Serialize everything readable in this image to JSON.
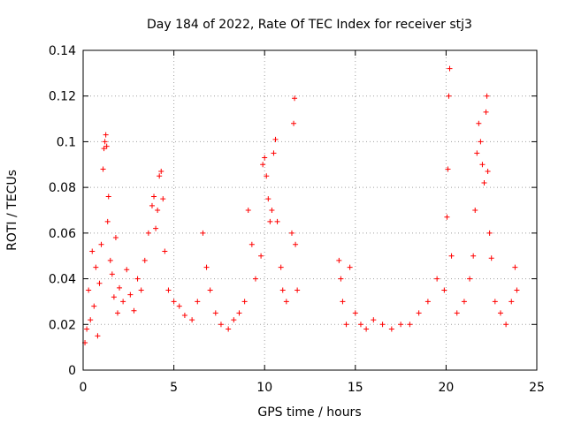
{
  "chart_data": {
    "type": "scatter",
    "title": "Day 184 of 2022, Rate Of TEC Index for receiver stj3",
    "xlabel": "GPS time / hours",
    "ylabel": "ROTI / TECUs",
    "xlim": [
      0,
      25
    ],
    "ylim": [
      0,
      0.14
    ],
    "x_ticks": [
      0,
      5,
      10,
      15,
      20,
      25
    ],
    "x_tick_labels": [
      "0",
      "5",
      "10",
      "15",
      "20",
      "25"
    ],
    "y_ticks": [
      0,
      0.02,
      0.04,
      0.06,
      0.08,
      0.1,
      0.12,
      0.14
    ],
    "y_tick_labels": [
      "0",
      "0.02",
      "0.04",
      "0.06",
      "0.08",
      "0.1",
      "0.12",
      "0.14"
    ],
    "grid": true,
    "grid_style": "dotted",
    "legend": "none",
    "marker": "plus",
    "color": "#ff0000",
    "data_gap_hours": [
      12.0,
      14.1
    ],
    "series": [
      {
        "values": [
          [
            0.1,
            0.012
          ],
          [
            0.2,
            0.018
          ],
          [
            0.3,
            0.035
          ],
          [
            0.4,
            0.022
          ],
          [
            0.5,
            0.052
          ],
          [
            0.6,
            0.028
          ],
          [
            0.7,
            0.045
          ],
          [
            0.8,
            0.015
          ],
          [
            0.9,
            0.038
          ],
          [
            1.0,
            0.055
          ],
          [
            1.1,
            0.088
          ],
          [
            1.15,
            0.097
          ],
          [
            1.2,
            0.1
          ],
          [
            1.25,
            0.103
          ],
          [
            1.3,
            0.098
          ],
          [
            1.35,
            0.065
          ],
          [
            1.4,
            0.076
          ],
          [
            1.5,
            0.048
          ],
          [
            1.6,
            0.042
          ],
          [
            1.7,
            0.032
          ],
          [
            1.8,
            0.058
          ],
          [
            1.9,
            0.025
          ],
          [
            2.0,
            0.036
          ],
          [
            2.2,
            0.03
          ],
          [
            2.4,
            0.044
          ],
          [
            2.6,
            0.033
          ],
          [
            2.8,
            0.026
          ],
          [
            3.0,
            0.04
          ],
          [
            3.2,
            0.035
          ],
          [
            3.4,
            0.048
          ],
          [
            3.6,
            0.06
          ],
          [
            3.8,
            0.072
          ],
          [
            3.9,
            0.076
          ],
          [
            4.0,
            0.062
          ],
          [
            4.1,
            0.07
          ],
          [
            4.2,
            0.085
          ],
          [
            4.3,
            0.087
          ],
          [
            4.4,
            0.075
          ],
          [
            4.5,
            0.052
          ],
          [
            4.7,
            0.035
          ],
          [
            5.0,
            0.03
          ],
          [
            5.3,
            0.028
          ],
          [
            5.6,
            0.024
          ],
          [
            6.0,
            0.022
          ],
          [
            6.3,
            0.03
          ],
          [
            6.6,
            0.06
          ],
          [
            6.8,
            0.045
          ],
          [
            7.0,
            0.035
          ],
          [
            7.3,
            0.025
          ],
          [
            7.6,
            0.02
          ],
          [
            8.0,
            0.018
          ],
          [
            8.3,
            0.022
          ],
          [
            8.6,
            0.025
          ],
          [
            8.9,
            0.03
          ],
          [
            9.1,
            0.07
          ],
          [
            9.3,
            0.055
          ],
          [
            9.5,
            0.04
          ],
          [
            9.8,
            0.05
          ],
          [
            9.9,
            0.09
          ],
          [
            10.0,
            0.093
          ],
          [
            10.1,
            0.085
          ],
          [
            10.2,
            0.075
          ],
          [
            10.3,
            0.065
          ],
          [
            10.4,
            0.07
          ],
          [
            10.5,
            0.095
          ],
          [
            10.6,
            0.101
          ],
          [
            10.7,
            0.065
          ],
          [
            10.9,
            0.045
          ],
          [
            11.0,
            0.035
          ],
          [
            11.2,
            0.03
          ],
          [
            11.5,
            0.06
          ],
          [
            11.6,
            0.108
          ],
          [
            11.65,
            0.119
          ],
          [
            11.7,
            0.055
          ],
          [
            11.8,
            0.035
          ],
          [
            14.1,
            0.048
          ],
          [
            14.2,
            0.04
          ],
          [
            14.3,
            0.03
          ],
          [
            14.5,
            0.02
          ],
          [
            14.7,
            0.045
          ],
          [
            15.0,
            0.025
          ],
          [
            15.3,
            0.02
          ],
          [
            15.6,
            0.018
          ],
          [
            16.0,
            0.022
          ],
          [
            16.5,
            0.02
          ],
          [
            17.0,
            0.018
          ],
          [
            17.5,
            0.02
          ],
          [
            18.0,
            0.02
          ],
          [
            18.5,
            0.025
          ],
          [
            19.0,
            0.03
          ],
          [
            19.5,
            0.04
          ],
          [
            19.9,
            0.035
          ],
          [
            20.05,
            0.067
          ],
          [
            20.1,
            0.088
          ],
          [
            20.15,
            0.12
          ],
          [
            20.2,
            0.132
          ],
          [
            20.3,
            0.05
          ],
          [
            20.6,
            0.025
          ],
          [
            21.0,
            0.03
          ],
          [
            21.3,
            0.04
          ],
          [
            21.5,
            0.05
          ],
          [
            21.6,
            0.07
          ],
          [
            21.7,
            0.095
          ],
          [
            21.8,
            0.108
          ],
          [
            21.9,
            0.1
          ],
          [
            22.0,
            0.09
          ],
          [
            22.1,
            0.082
          ],
          [
            22.2,
            0.113
          ],
          [
            22.25,
            0.12
          ],
          [
            22.3,
            0.087
          ],
          [
            22.4,
            0.06
          ],
          [
            22.5,
            0.049
          ],
          [
            22.7,
            0.03
          ],
          [
            23.0,
            0.025
          ],
          [
            23.3,
            0.02
          ],
          [
            23.6,
            0.03
          ],
          [
            23.8,
            0.045
          ],
          [
            23.9,
            0.035
          ]
        ]
      }
    ]
  }
}
